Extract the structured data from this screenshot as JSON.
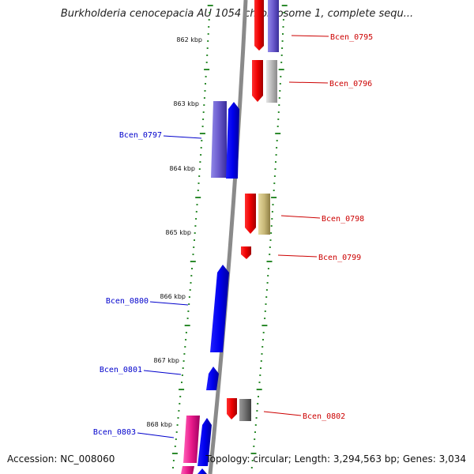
{
  "title": "Burkholderia cenocepacia AU 1054 chromosome 1, complete sequ...",
  "footer": {
    "accession": "Accession: NC_008060",
    "stats": "Topology: circular; Length: 3,294,563 bp; Genes: 3,034"
  },
  "colors": {
    "backbone": "#8a8a8a",
    "tick": "#2e8b2e",
    "forward_label": "#0000cc",
    "reverse_label": "#cc0000"
  },
  "positions": [
    "862 kbp",
    "863 kbp",
    "864 kbp",
    "865 kbp",
    "866 kbp",
    "867 kbp",
    "868 kbp"
  ],
  "genes_forward": [
    {
      "label": "Bcen_0797",
      "color": "#0000ee"
    },
    {
      "label": "Bcen_0800",
      "color": "#0000ee"
    },
    {
      "label": "Bcen_0801",
      "color": "#0000ee"
    },
    {
      "label": "Bcen_0803",
      "color": "#0000ee"
    }
  ],
  "genes_reverse": [
    {
      "label": "Bcen_0795",
      "color": "#ee0000"
    },
    {
      "label": "Bcen_0796",
      "color": "#ee0000"
    },
    {
      "label": "Bcen_0798",
      "color": "#ee0000"
    },
    {
      "label": "Bcen_0799",
      "color": "#ee0000"
    },
    {
      "label": "Bcen_0802",
      "color": "#ee0000"
    }
  ],
  "feature_colors": {
    "cog_purple": "#6a5acd",
    "cog_gray": "#b8b8b8",
    "cog_tan": "#c8b878",
    "cog_dark_gray": "#707070",
    "cog_pink": "#e8198a"
  }
}
